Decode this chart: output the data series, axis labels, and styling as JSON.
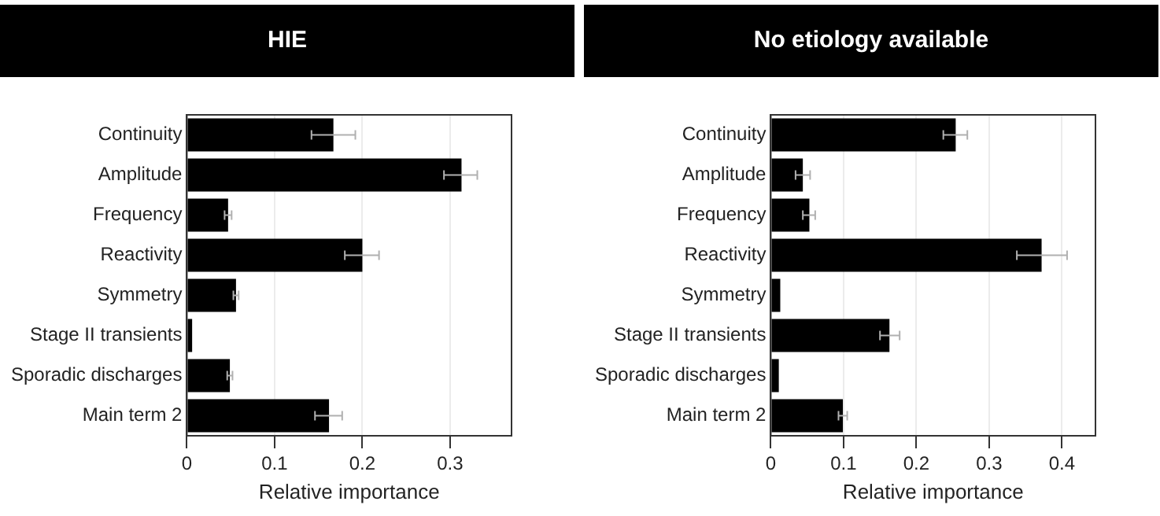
{
  "chart_data": [
    {
      "type": "bar",
      "title": "HIE",
      "orientation": "horizontal",
      "xlabel": "Relative importance",
      "categories": [
        "Continuity",
        "Amplitude",
        "Frequency",
        "Reactivity",
        "Symmetry",
        "Stage II transients",
        "Sporadic discharges",
        "Main term 2"
      ],
      "values": [
        0.167,
        0.313,
        0.047,
        0.2,
        0.056,
        0.006,
        0.049,
        0.162
      ],
      "errors": [
        [
          0.142,
          0.192
        ],
        [
          0.293,
          0.331
        ],
        [
          0.043,
          0.051
        ],
        [
          0.18,
          0.219
        ],
        [
          0.053,
          0.059
        ],
        null,
        [
          0.046,
          0.052
        ],
        [
          0.146,
          0.177
        ]
      ],
      "color": "#000000",
      "xlim": [
        0,
        0.37
      ],
      "xticks": [
        0,
        0.1,
        0.2,
        0.3
      ],
      "grid": true
    },
    {
      "type": "bar",
      "title": "No etiology available",
      "orientation": "horizontal",
      "xlabel": "Relative importance",
      "categories": [
        "Continuity",
        "Amplitude",
        "Frequency",
        "Reactivity",
        "Symmetry",
        "Stage II transients",
        "Sporadic discharges",
        "Main term 2"
      ],
      "values": [
        0.254,
        0.044,
        0.053,
        0.372,
        0.013,
        0.163,
        0.011,
        0.099
      ],
      "errors": [
        [
          0.237,
          0.27
        ],
        [
          0.034,
          0.054
        ],
        [
          0.044,
          0.061
        ],
        [
          0.338,
          0.407
        ],
        null,
        [
          0.15,
          0.177
        ],
        null,
        [
          0.093,
          0.105
        ]
      ],
      "color": "#000000",
      "xlim": [
        0,
        0.446
      ],
      "xticks": [
        0,
        0.1,
        0.2,
        0.3,
        0.4
      ],
      "grid": true
    }
  ]
}
